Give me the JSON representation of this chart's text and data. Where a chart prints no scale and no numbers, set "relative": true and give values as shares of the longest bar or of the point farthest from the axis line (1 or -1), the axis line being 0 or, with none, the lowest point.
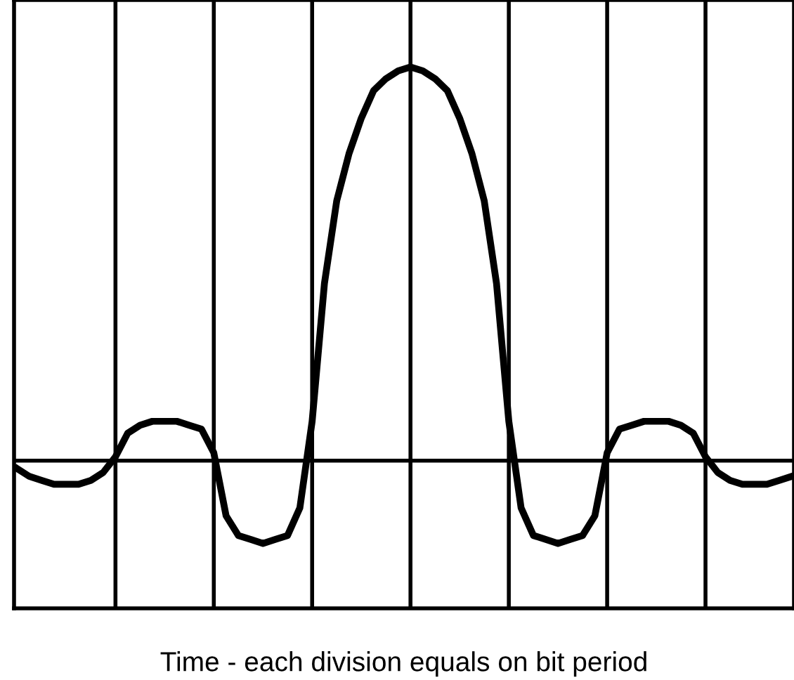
{
  "chart_data": {
    "type": "line",
    "xlabel": "Time - each division equals on bit period",
    "relative": true,
    "categories": [
      null,
      null,
      null,
      null,
      null,
      null,
      null,
      null,
      null,
      null,
      null,
      null,
      null,
      null,
      null,
      null,
      null,
      null,
      null,
      null,
      null,
      null,
      null,
      null,
      null,
      null,
      null,
      null,
      null,
      null,
      null,
      null,
      null,
      null,
      null,
      null,
      null,
      null,
      null,
      null,
      null,
      null,
      null,
      null,
      null,
      null,
      null,
      null,
      null,
      null,
      null,
      null,
      null,
      null,
      null,
      null,
      null,
      null,
      null,
      null,
      null,
      null,
      null,
      null
    ],
    "series": [
      {
        "color": "#000000",
        "values": [
          -0.02,
          -0.04,
          -0.05,
          -0.06,
          -0.06,
          -0.06,
          -0.05,
          -0.03,
          0.01,
          0.07,
          0.09,
          0.1,
          0.1,
          0.1,
          0.09,
          0.08,
          0.02,
          -0.14,
          -0.19,
          -0.2,
          -0.21,
          -0.2,
          -0.19,
          -0.12,
          0.1,
          0.45,
          0.66,
          0.78,
          0.87,
          0.94,
          0.97,
          0.99,
          1,
          0.99,
          0.97,
          0.94,
          0.87,
          0.78,
          0.66,
          0.45,
          0.1,
          -0.12,
          -0.19,
          -0.2,
          -0.21,
          -0.2,
          -0.19,
          -0.14,
          0.02,
          0.08,
          0.09,
          0.1,
          0.1,
          0.1,
          0.09,
          0.07,
          0.01,
          -0.03,
          -0.05,
          -0.06,
          -0.06,
          -0.06,
          -0.05,
          -0.04
        ]
      }
    ],
    "tick_labels": false,
    "grid": "x",
    "marker": "none",
    "line_style": "solid"
  }
}
